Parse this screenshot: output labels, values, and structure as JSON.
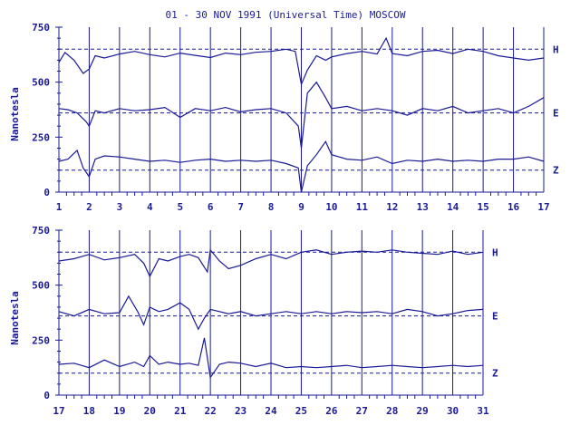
{
  "chart": {
    "title": "01 - 30 NOV 1991 (Universal Time) MOSCOW",
    "ylabel": "Nanotesla",
    "color": "#1a1a96",
    "gridlines": "vertical at each day",
    "reference_lines": "dashed"
  },
  "chart_data": [
    {
      "type": "line",
      "title": "01 - 30 NOV 1991 (Universal Time) MOSCOW",
      "ylabel": "Nanotesla",
      "xlim": [
        1,
        17
      ],
      "ylim": [
        0,
        750
      ],
      "x_tick_labels": [
        "1",
        "2",
        "3",
        "4",
        "5",
        "6",
        "7",
        "8",
        "9",
        "10",
        "11",
        "12",
        "13",
        "14",
        "15",
        "16",
        "17"
      ],
      "y_tick_labels": [
        "0",
        "250",
        "500",
        "750"
      ],
      "baselines": {
        "H": 650,
        "E": 360,
        "Z": 100
      },
      "series": [
        {
          "name": "H",
          "x": [
            1,
            1.2,
            1.5,
            1.8,
            2,
            2.2,
            2.5,
            3,
            3.5,
            4,
            4.5,
            5,
            5.5,
            6,
            6.5,
            7,
            7.5,
            8,
            8.5,
            8.8,
            9,
            9.2,
            9.5,
            9.8,
            10,
            10.5,
            11,
            11.5,
            11.8,
            12,
            12.5,
            13,
            13.5,
            14,
            14.5,
            15,
            15.5,
            16,
            16.5,
            17
          ],
          "y": [
            590,
            635,
            600,
            540,
            560,
            620,
            610,
            628,
            640,
            625,
            615,
            632,
            622,
            612,
            632,
            625,
            636,
            640,
            650,
            640,
            490,
            555,
            620,
            600,
            615,
            630,
            640,
            628,
            700,
            630,
            620,
            640,
            645,
            630,
            650,
            640,
            620,
            610,
            600,
            610
          ]
        },
        {
          "name": "E",
          "x": [
            1,
            1.3,
            1.6,
            1.9,
            2,
            2.2,
            2.5,
            3,
            3.5,
            4,
            4.5,
            5,
            5.5,
            6,
            6.5,
            7,
            7.5,
            8,
            8.5,
            8.9,
            9,
            9.2,
            9.5,
            9.8,
            10,
            10.5,
            11,
            11.5,
            12,
            12.5,
            13,
            13.5,
            14,
            14.5,
            15,
            15.5,
            16,
            16.5,
            17
          ],
          "y": [
            380,
            375,
            360,
            320,
            300,
            370,
            360,
            380,
            370,
            375,
            385,
            340,
            380,
            370,
            385,
            365,
            375,
            380,
            360,
            300,
            200,
            450,
            500,
            430,
            380,
            390,
            370,
            380,
            370,
            350,
            380,
            370,
            390,
            360,
            370,
            380,
            360,
            390,
            430
          ]
        },
        {
          "name": "Z",
          "x": [
            1,
            1.3,
            1.6,
            1.8,
            2,
            2.2,
            2.5,
            3,
            3.5,
            4,
            4.5,
            5,
            5.5,
            6,
            6.5,
            7,
            7.5,
            8,
            8.5,
            8.9,
            9,
            9.2,
            9.5,
            9.8,
            10,
            10.5,
            11,
            11.5,
            12,
            12.5,
            13,
            13.5,
            14,
            14.5,
            15,
            15.5,
            16,
            16.5,
            17
          ],
          "y": [
            140,
            150,
            190,
            110,
            70,
            150,
            165,
            160,
            150,
            140,
            145,
            135,
            145,
            150,
            140,
            145,
            140,
            145,
            130,
            110,
            0,
            120,
            170,
            230,
            170,
            150,
            145,
            160,
            130,
            145,
            140,
            150,
            140,
            145,
            140,
            150,
            150,
            160,
            140
          ]
        }
      ]
    },
    {
      "type": "line",
      "xlim": [
        17,
        31
      ],
      "ylim": [
        0,
        750
      ],
      "x_tick_labels": [
        "17",
        "18",
        "19",
        "20",
        "21",
        "22",
        "23",
        "24",
        "25",
        "26",
        "27",
        "28",
        "29",
        "30",
        "31"
      ],
      "y_tick_labels": [
        "0",
        "250",
        "500",
        "750"
      ],
      "baselines": {
        "H": 650,
        "E": 360,
        "Z": 100
      },
      "series": [
        {
          "name": "H",
          "x": [
            17,
            17.5,
            18,
            18.5,
            19,
            19.5,
            19.8,
            20,
            20.3,
            20.6,
            21,
            21.3,
            21.6,
            21.9,
            22,
            22.3,
            22.6,
            23,
            23.5,
            24,
            24.5,
            25,
            25.5,
            26,
            26.5,
            27,
            27.5,
            28,
            28.5,
            29,
            29.5,
            30,
            30.5,
            31
          ],
          "y": [
            610,
            620,
            640,
            615,
            625,
            640,
            600,
            540,
            620,
            610,
            630,
            640,
            625,
            560,
            660,
            610,
            575,
            590,
            620,
            640,
            620,
            650,
            660,
            640,
            650,
            655,
            650,
            660,
            650,
            645,
            640,
            655,
            640,
            650
          ]
        },
        {
          "name": "E",
          "x": [
            17,
            17.5,
            18,
            18.5,
            19,
            19.3,
            19.6,
            19.8,
            20,
            20.3,
            20.6,
            21,
            21.3,
            21.6,
            21.8,
            22,
            22.3,
            22.6,
            23,
            23.5,
            24,
            24.5,
            25,
            25.5,
            26,
            26.5,
            27,
            27.5,
            28,
            28.5,
            29,
            29.5,
            30,
            30.5,
            31
          ],
          "y": [
            380,
            360,
            390,
            370,
            375,
            450,
            380,
            320,
            400,
            380,
            390,
            420,
            390,
            300,
            350,
            390,
            380,
            370,
            380,
            360,
            370,
            380,
            370,
            380,
            370,
            380,
            375,
            380,
            370,
            390,
            380,
            360,
            370,
            385,
            390
          ]
        },
        {
          "name": "Z",
          "x": [
            17,
            17.5,
            18,
            18.5,
            19,
            19.5,
            19.8,
            20,
            20.3,
            20.6,
            21,
            21.3,
            21.6,
            21.8,
            22,
            22.3,
            22.6,
            23,
            23.5,
            24,
            24.5,
            25,
            25.5,
            26,
            26.5,
            27,
            27.5,
            28,
            28.5,
            29,
            29.5,
            30,
            30.5,
            31
          ],
          "y": [
            140,
            145,
            125,
            160,
            130,
            150,
            130,
            180,
            140,
            150,
            140,
            145,
            135,
            260,
            80,
            140,
            150,
            145,
            130,
            145,
            125,
            130,
            125,
            130,
            135,
            125,
            130,
            135,
            130,
            125,
            130,
            135,
            130,
            135
          ]
        }
      ]
    }
  ]
}
